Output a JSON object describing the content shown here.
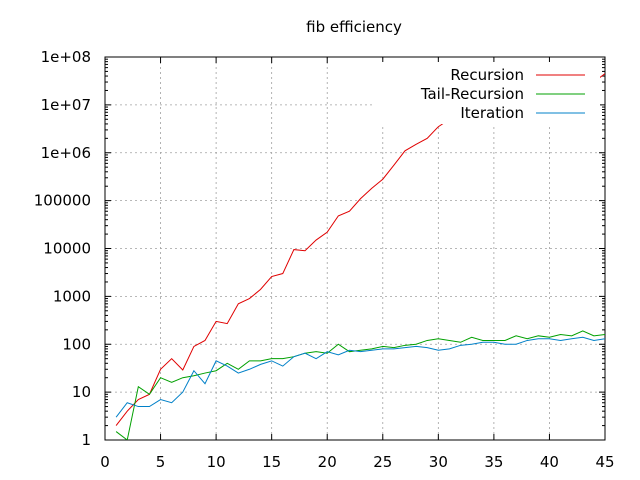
{
  "chart_data": {
    "type": "line",
    "title": "fib efficiency",
    "xlabel": "",
    "ylabel": "",
    "xlim": [
      0,
      45
    ],
    "ylim": [
      1,
      100000000
    ],
    "yscale": "log",
    "grid": true,
    "legend_position": "top-right",
    "x_ticks": [
      0,
      5,
      10,
      15,
      20,
      25,
      30,
      35,
      40,
      45
    ],
    "y_ticks": [
      1,
      10,
      100,
      1000,
      10000,
      100000,
      1000000,
      10000000,
      100000000
    ],
    "y_tick_labels": [
      "1",
      "10",
      "100",
      "1000",
      "10000",
      "100000",
      "1e+06",
      "1e+07",
      "1e+08"
    ],
    "x": [
      1,
      2,
      3,
      4,
      5,
      6,
      7,
      8,
      9,
      10,
      11,
      12,
      13,
      14,
      15,
      16,
      17,
      18,
      19,
      20,
      21,
      22,
      23,
      24,
      25,
      26,
      27,
      28,
      29,
      30,
      31,
      32,
      33,
      34,
      35,
      36,
      37,
      38,
      39,
      40,
      41,
      42,
      43,
      44,
      45
    ],
    "series": [
      {
        "name": "Recursion",
        "color": "#e00000",
        "values": [
          2,
          4,
          7,
          9,
          30,
          50,
          29,
          90,
          120,
          300,
          270,
          700,
          900,
          1400,
          2600,
          3000,
          9500,
          9000,
          15000,
          22000,
          48000,
          60000,
          110000,
          180000,
          280000,
          550000,
          1100000,
          1500000,
          2000000,
          3500000,
          5000000,
          8000000,
          14000000,
          22000000,
          40000000,
          60000000,
          70000000,
          14000000,
          20000000,
          40000000,
          70000000,
          11000000,
          17000000,
          30000000,
          45000000
        ]
      },
      {
        "name": "Tail-Recursion",
        "color": "#00a000",
        "values": [
          1.5,
          1,
          13,
          9,
          20,
          16,
          20,
          22,
          25,
          28,
          40,
          30,
          45,
          45,
          50,
          50,
          55,
          65,
          70,
          65,
          100,
          70,
          75,
          80,
          90,
          85,
          95,
          100,
          120,
          130,
          120,
          110,
          140,
          120,
          120,
          120,
          150,
          130,
          150,
          140,
          160,
          150,
          190,
          150,
          160
        ]
      },
      {
        "name": "Iteration",
        "color": "#0080c8",
        "values": [
          3,
          6,
          5,
          5,
          7,
          6,
          10,
          28,
          15,
          45,
          35,
          25,
          30,
          38,
          45,
          35,
          55,
          65,
          50,
          70,
          60,
          75,
          70,
          75,
          80,
          80,
          85,
          90,
          85,
          75,
          80,
          95,
          100,
          110,
          110,
          100,
          100,
          120,
          130,
          130,
          120,
          130,
          140,
          120,
          130
        ]
      }
    ]
  }
}
